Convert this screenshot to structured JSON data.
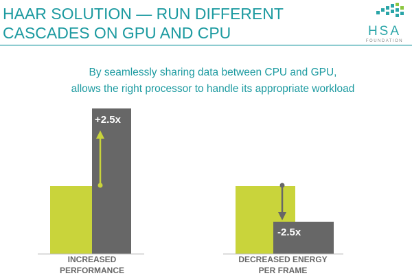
{
  "header": {
    "title": [
      "HAAR SOLUTION — RUN DIFFERENT",
      "CASCADES ON GPU AND CPU"
    ]
  },
  "logo": {
    "name": "HSA",
    "sub": "FOUNDATION"
  },
  "subtitle": [
    "By seamlessly sharing data between CPU and GPU,",
    "allows the right processor to handle its appropriate workload"
  ],
  "panels": [
    {
      "badge": "+2.5x",
      "label": [
        "INCREASED",
        "PERFORMANCE"
      ]
    },
    {
      "badge": "-2.5x",
      "label": [
        "DECREASED ENERGY",
        "PER FRAME"
      ]
    }
  ]
}
